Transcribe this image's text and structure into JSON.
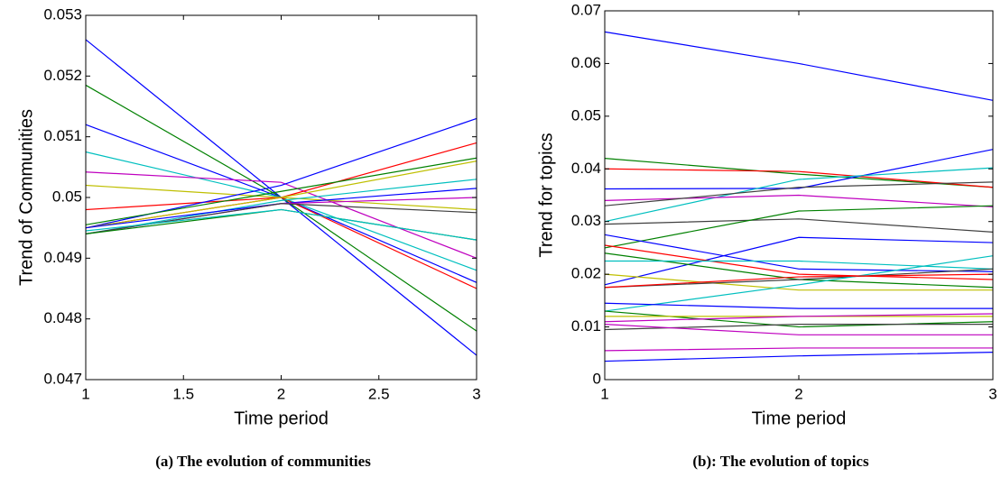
{
  "chart_data": [
    {
      "type": "line",
      "caption": "(a) The evolution of communities",
      "xlabel": "Time period",
      "ylabel": "Trend of Communities",
      "x": [
        1,
        2,
        3
      ],
      "xlim": [
        1,
        3
      ],
      "xticks": [
        1,
        1.5,
        2,
        2.5,
        3
      ],
      "ylim": [
        0.047,
        0.053
      ],
      "yticks": [
        0.047,
        0.048,
        0.049,
        0.05,
        0.051,
        0.052,
        0.053
      ],
      "series": [
        {
          "color": "#0000ff",
          "values": [
            0.0526,
            0.05,
            0.0474
          ]
        },
        {
          "color": "#008000",
          "values": [
            0.05185,
            0.05,
            0.0478
          ]
        },
        {
          "color": "#0000ff",
          "values": [
            0.0512,
            0.05,
            0.0486
          ]
        },
        {
          "color": "#00bfbf",
          "values": [
            0.05075,
            0.05,
            0.0488
          ]
        },
        {
          "color": "#bf00bf",
          "values": [
            0.05042,
            0.05025,
            0.049
          ]
        },
        {
          "color": "#bfbf00",
          "values": [
            0.0502,
            0.05,
            0.0498
          ]
        },
        {
          "color": "#ff0000",
          "values": [
            0.0498,
            0.05,
            0.0485
          ]
        },
        {
          "color": "#0000ff",
          "values": [
            0.0495,
            0.0502,
            0.0513
          ]
        },
        {
          "color": "#ff0000",
          "values": [
            0.0495,
            0.05,
            0.0509
          ]
        },
        {
          "color": "#008000",
          "values": [
            0.04955,
            0.0501,
            0.05065
          ]
        },
        {
          "color": "#bfbf00",
          "values": [
            0.0495,
            0.05,
            0.0506
          ]
        },
        {
          "color": "#00bfbf",
          "values": [
            0.0494,
            0.04995,
            0.0503
          ]
        },
        {
          "color": "#0000ff",
          "values": [
            0.0495,
            0.0499,
            0.05015
          ]
        },
        {
          "color": "#bf00bf",
          "values": [
            0.0494,
            0.0499,
            0.05
          ]
        },
        {
          "color": "#404040",
          "values": [
            0.0494,
            0.0499,
            0.04975
          ]
        },
        {
          "color": "#008000",
          "values": [
            0.0494,
            0.0498,
            0.0493
          ]
        },
        {
          "color": "#00bfbf",
          "values": [
            0.04945,
            0.0498,
            0.0493
          ]
        }
      ]
    },
    {
      "type": "line",
      "caption": "(b): The evolution of topics",
      "xlabel": "Time period",
      "ylabel": "Trend for topics",
      "x": [
        1,
        2,
        3
      ],
      "xlim": [
        1,
        3
      ],
      "xticks": [
        1,
        2,
        3
      ],
      "ylim": [
        0,
        0.07
      ],
      "yticks": [
        0,
        0.01,
        0.02,
        0.03,
        0.04,
        0.05,
        0.06,
        0.07
      ],
      "series": [
        {
          "color": "#0000ff",
          "values": [
            0.066,
            0.06,
            0.053
          ]
        },
        {
          "color": "#008000",
          "values": [
            0.042,
            0.039,
            0.0365
          ]
        },
        {
          "color": "#ff0000",
          "values": [
            0.04,
            0.0395,
            0.0365
          ]
        },
        {
          "color": "#0000ff",
          "values": [
            0.0362,
            0.0363,
            0.0437
          ]
        },
        {
          "color": "#00bfbf",
          "values": [
            0.03,
            0.038,
            0.0402
          ]
        },
        {
          "color": "#bf00bf",
          "values": [
            0.034,
            0.035,
            0.0328
          ]
        },
        {
          "color": "#404040",
          "values": [
            0.033,
            0.0365,
            0.0375
          ]
        },
        {
          "color": "#404040",
          "values": [
            0.0295,
            0.0305,
            0.028
          ]
        },
        {
          "color": "#008000",
          "values": [
            0.025,
            0.032,
            0.033
          ]
        },
        {
          "color": "#0000ff",
          "values": [
            0.0275,
            0.021,
            0.0205
          ]
        },
        {
          "color": "#0000ff",
          "values": [
            0.018,
            0.027,
            0.026
          ]
        },
        {
          "color": "#ff0000",
          "values": [
            0.0255,
            0.02,
            0.019
          ]
        },
        {
          "color": "#008000",
          "values": [
            0.024,
            0.019,
            0.0175
          ]
        },
        {
          "color": "#00bfbf",
          "values": [
            0.0225,
            0.0225,
            0.021
          ]
        },
        {
          "color": "#bfbf00",
          "values": [
            0.02,
            0.017,
            0.017
          ]
        },
        {
          "color": "#404040",
          "values": [
            0.0175,
            0.019,
            0.021
          ]
        },
        {
          "color": "#00bfbf",
          "values": [
            0.013,
            0.018,
            0.0235
          ]
        },
        {
          "color": "#ff0000",
          "values": [
            0.0175,
            0.0195,
            0.02
          ]
        },
        {
          "color": "#0000ff",
          "values": [
            0.0145,
            0.0135,
            0.0135
          ]
        },
        {
          "color": "#008000",
          "values": [
            0.013,
            0.01,
            0.011
          ]
        },
        {
          "color": "#bfbf00",
          "values": [
            0.012,
            0.012,
            0.012
          ]
        },
        {
          "color": "#bf00bf",
          "values": [
            0.011,
            0.012,
            0.0125
          ]
        },
        {
          "color": "#404040",
          "values": [
            0.0095,
            0.0105,
            0.0105
          ]
        },
        {
          "color": "#bf00bf",
          "values": [
            0.0105,
            0.0085,
            0.0085
          ]
        },
        {
          "color": "#bf00bf",
          "values": [
            0.0055,
            0.006,
            0.006
          ]
        },
        {
          "color": "#0000ff",
          "values": [
            0.0035,
            0.0045,
            0.0052
          ]
        }
      ]
    }
  ]
}
